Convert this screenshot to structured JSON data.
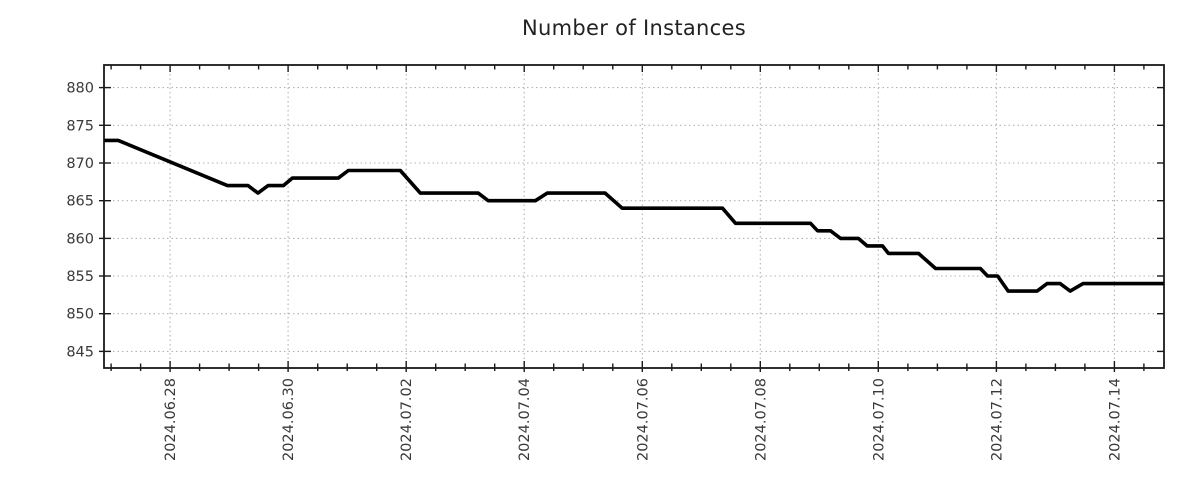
{
  "colors": {
    "background": "#ffffff",
    "line": "#000000",
    "grid": "#b3b3b3",
    "axis": "#1a1a1a",
    "text": "#3a3a3a",
    "title": "#222222"
  },
  "chart_data": {
    "type": "line",
    "title": "Number of Instances",
    "xlabel": "",
    "ylabel": "",
    "x_unit": "days since 2024-06-28 00:00",
    "xlim": [
      -1.12,
      16.84
    ],
    "ylim": [
      842.8,
      883.0
    ],
    "grid": true,
    "legend": "none",
    "x_minor_step": 0.5,
    "x_ticks": [
      {
        "pos": 0,
        "label": "2024.06.28"
      },
      {
        "pos": 2,
        "label": "2024.06.30"
      },
      {
        "pos": 4,
        "label": "2024.07.02"
      },
      {
        "pos": 6,
        "label": "2024.07.04"
      },
      {
        "pos": 8,
        "label": "2024.07.06"
      },
      {
        "pos": 10,
        "label": "2024.07.08"
      },
      {
        "pos": 12,
        "label": "2024.07.10"
      },
      {
        "pos": 14,
        "label": "2024.07.12"
      },
      {
        "pos": 16,
        "label": "2024.07.14"
      }
    ],
    "y_ticks": [
      845,
      850,
      855,
      860,
      865,
      870,
      875,
      880
    ],
    "series": [
      {
        "name": "instances",
        "points": [
          [
            -1.12,
            873
          ],
          [
            -0.88,
            873
          ],
          [
            0.97,
            867
          ],
          [
            1.32,
            867
          ],
          [
            1.49,
            866
          ],
          [
            1.66,
            867
          ],
          [
            1.92,
            867
          ],
          [
            2.07,
            868
          ],
          [
            2.85,
            868
          ],
          [
            3.02,
            869
          ],
          [
            3.9,
            869
          ],
          [
            4.24,
            866
          ],
          [
            5.22,
            866
          ],
          [
            5.39,
            865
          ],
          [
            6.19,
            865
          ],
          [
            6.39,
            866
          ],
          [
            7.37,
            866
          ],
          [
            7.66,
            864
          ],
          [
            9.36,
            864
          ],
          [
            9.58,
            862
          ],
          [
            10.85,
            862
          ],
          [
            10.97,
            861
          ],
          [
            11.19,
            861
          ],
          [
            11.36,
            860
          ],
          [
            11.66,
            860
          ],
          [
            11.81,
            859
          ],
          [
            12.07,
            859
          ],
          [
            12.17,
            858
          ],
          [
            12.68,
            858
          ],
          [
            12.97,
            856
          ],
          [
            13.73,
            856
          ],
          [
            13.85,
            855
          ],
          [
            14.02,
            855
          ],
          [
            14.2,
            853
          ],
          [
            14.69,
            853
          ],
          [
            14.86,
            854
          ],
          [
            15.08,
            854
          ],
          [
            15.25,
            853
          ],
          [
            15.47,
            854
          ],
          [
            16.84,
            854
          ]
        ]
      }
    ]
  }
}
